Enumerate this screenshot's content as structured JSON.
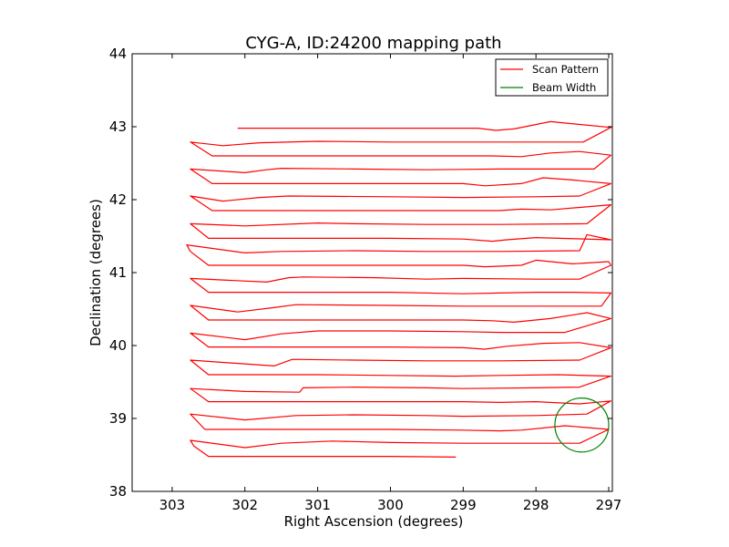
{
  "chart_data": {
    "type": "line",
    "title": "CYG-A, ID:24200 mapping path",
    "xlabel": "Right Ascension (degrees)",
    "ylabel": "Declination (degrees)",
    "xlim": [
      303.55,
      296.95
    ],
    "ylim": [
      38,
      44
    ],
    "x_ticks": [
      303,
      302,
      301,
      300,
      299,
      298,
      297
    ],
    "y_ticks": [
      38,
      39,
      40,
      41,
      42,
      43,
      44
    ],
    "x_tick_labels": [
      "303",
      "302",
      "301",
      "300",
      "299",
      "298",
      "297"
    ],
    "y_tick_labels": [
      "38",
      "39",
      "40",
      "41",
      "42",
      "43",
      "44"
    ],
    "grid": false,
    "legend_position": "top-right",
    "series": [
      {
        "name": "Scan Pattern",
        "color": "#ff0000",
        "points": [
          [
            299.1,
            38.47
          ],
          [
            300.0,
            38.48
          ],
          [
            301.0,
            38.48
          ],
          [
            302.5,
            38.48
          ],
          [
            302.7,
            38.62
          ],
          [
            302.75,
            38.7
          ],
          [
            302.0,
            38.6
          ],
          [
            301.5,
            38.66
          ],
          [
            300.8,
            38.69
          ],
          [
            300.0,
            38.67
          ],
          [
            299.0,
            38.66
          ],
          [
            298.0,
            38.66
          ],
          [
            297.4,
            38.66
          ],
          [
            297.0,
            38.85
          ],
          [
            297.6,
            38.9
          ],
          [
            298.2,
            38.84
          ],
          [
            298.5,
            38.83
          ],
          [
            299.0,
            38.84
          ],
          [
            300.0,
            38.85
          ],
          [
            302.0,
            38.85
          ],
          [
            302.55,
            38.85
          ],
          [
            302.75,
            39.06
          ],
          [
            302.0,
            38.98
          ],
          [
            301.3,
            39.04
          ],
          [
            300.5,
            39.05
          ],
          [
            299.5,
            39.04
          ],
          [
            299.0,
            39.03
          ],
          [
            298.0,
            39.04
          ],
          [
            297.3,
            39.06
          ],
          [
            296.97,
            39.24
          ],
          [
            297.4,
            39.2
          ],
          [
            298.0,
            39.23
          ],
          [
            298.5,
            39.22
          ],
          [
            299.0,
            39.23
          ],
          [
            300.0,
            39.23
          ],
          [
            301.0,
            39.23
          ],
          [
            302.5,
            39.23
          ],
          [
            302.75,
            39.41
          ],
          [
            302.0,
            39.37
          ],
          [
            301.25,
            39.36
          ],
          [
            301.2,
            39.42
          ],
          [
            300.5,
            39.43
          ],
          [
            299.5,
            39.42
          ],
          [
            299.0,
            39.41
          ],
          [
            298.0,
            39.42
          ],
          [
            297.4,
            39.43
          ],
          [
            296.97,
            39.58
          ],
          [
            297.7,
            39.6
          ],
          [
            298.5,
            39.59
          ],
          [
            299.1,
            39.58
          ],
          [
            300.0,
            39.59
          ],
          [
            301.0,
            39.6
          ],
          [
            302.5,
            39.6
          ],
          [
            302.75,
            39.8
          ],
          [
            301.6,
            39.72
          ],
          [
            301.35,
            39.81
          ],
          [
            300.5,
            39.8
          ],
          [
            299.5,
            39.79
          ],
          [
            298.5,
            39.79
          ],
          [
            297.4,
            39.8
          ],
          [
            296.97,
            39.97
          ],
          [
            297.4,
            40.04
          ],
          [
            297.9,
            40.03
          ],
          [
            298.4,
            39.99
          ],
          [
            298.7,
            39.95
          ],
          [
            299.0,
            39.97
          ],
          [
            300.0,
            39.98
          ],
          [
            301.0,
            39.98
          ],
          [
            302.5,
            39.98
          ],
          [
            302.75,
            40.17
          ],
          [
            302.0,
            40.08
          ],
          [
            301.5,
            40.16
          ],
          [
            301.0,
            40.2
          ],
          [
            300.0,
            40.2
          ],
          [
            299.0,
            40.19
          ],
          [
            298.5,
            40.18
          ],
          [
            297.6,
            40.18
          ],
          [
            296.97,
            40.37
          ],
          [
            297.3,
            40.45
          ],
          [
            297.8,
            40.37
          ],
          [
            298.3,
            40.32
          ],
          [
            298.6,
            40.34
          ],
          [
            299.0,
            40.35
          ],
          [
            300.0,
            40.35
          ],
          [
            301.0,
            40.35
          ],
          [
            302.5,
            40.35
          ],
          [
            302.75,
            40.55
          ],
          [
            302.1,
            40.46
          ],
          [
            301.6,
            40.52
          ],
          [
            301.3,
            40.56
          ],
          [
            300.0,
            40.55
          ],
          [
            299.0,
            40.54
          ],
          [
            298.0,
            40.54
          ],
          [
            297.1,
            40.54
          ],
          [
            296.97,
            40.72
          ],
          [
            297.5,
            40.73
          ],
          [
            298.0,
            40.73
          ],
          [
            298.5,
            40.72
          ],
          [
            299.0,
            40.71
          ],
          [
            300.0,
            40.73
          ],
          [
            301.0,
            40.73
          ],
          [
            302.5,
            40.73
          ],
          [
            302.75,
            40.92
          ],
          [
            301.7,
            40.87
          ],
          [
            301.4,
            40.93
          ],
          [
            301.2,
            40.94
          ],
          [
            300.2,
            40.93
          ],
          [
            299.5,
            40.91
          ],
          [
            299.0,
            40.92
          ],
          [
            298.0,
            40.91
          ],
          [
            297.4,
            40.91
          ],
          [
            296.97,
            41.1
          ],
          [
            297.0,
            41.15
          ],
          [
            297.5,
            41.12
          ],
          [
            298.0,
            41.17
          ],
          [
            298.2,
            41.1
          ],
          [
            298.7,
            41.08
          ],
          [
            299.0,
            41.1
          ],
          [
            300.0,
            41.1
          ],
          [
            301.0,
            41.1
          ],
          [
            302.5,
            41.1
          ],
          [
            302.75,
            41.29
          ],
          [
            302.8,
            41.38
          ],
          [
            302.0,
            41.27
          ],
          [
            301.5,
            41.29
          ],
          [
            300.5,
            41.3
          ],
          [
            299.5,
            41.29
          ],
          [
            298.5,
            41.29
          ],
          [
            297.4,
            41.3
          ],
          [
            297.3,
            41.52
          ],
          [
            296.97,
            41.45
          ],
          [
            298.0,
            41.48
          ],
          [
            298.4,
            41.45
          ],
          [
            298.6,
            41.43
          ],
          [
            299.0,
            41.46
          ],
          [
            300.0,
            41.47
          ],
          [
            301.0,
            41.47
          ],
          [
            302.5,
            41.47
          ],
          [
            302.75,
            41.67
          ],
          [
            302.0,
            41.64
          ],
          [
            301.0,
            41.68
          ],
          [
            300.5,
            41.67
          ],
          [
            299.5,
            41.66
          ],
          [
            298.5,
            41.66
          ],
          [
            297.3,
            41.67
          ],
          [
            296.97,
            41.93
          ],
          [
            297.8,
            41.86
          ],
          [
            298.2,
            41.87
          ],
          [
            298.5,
            41.85
          ],
          [
            299.0,
            41.85
          ],
          [
            300.0,
            41.85
          ],
          [
            301.0,
            41.85
          ],
          [
            302.45,
            41.85
          ],
          [
            302.75,
            42.05
          ],
          [
            302.3,
            41.98
          ],
          [
            301.8,
            42.03
          ],
          [
            301.4,
            42.05
          ],
          [
            300.0,
            42.04
          ],
          [
            299.0,
            42.03
          ],
          [
            298.0,
            42.04
          ],
          [
            297.4,
            42.05
          ],
          [
            296.97,
            42.22
          ],
          [
            297.5,
            42.27
          ],
          [
            297.9,
            42.3
          ],
          [
            298.2,
            42.22
          ],
          [
            298.7,
            42.19
          ],
          [
            299.0,
            42.22
          ],
          [
            300.0,
            42.22
          ],
          [
            301.0,
            42.22
          ],
          [
            302.45,
            42.22
          ],
          [
            302.75,
            42.42
          ],
          [
            302.0,
            42.37
          ],
          [
            301.7,
            42.41
          ],
          [
            301.5,
            42.43
          ],
          [
            300.5,
            42.42
          ],
          [
            299.5,
            42.41
          ],
          [
            298.5,
            42.42
          ],
          [
            297.2,
            42.42
          ],
          [
            296.97,
            42.61
          ],
          [
            297.4,
            42.66
          ],
          [
            297.8,
            42.64
          ],
          [
            298.2,
            42.59
          ],
          [
            298.6,
            42.6
          ],
          [
            299.0,
            42.6
          ],
          [
            300.0,
            42.6
          ],
          [
            301.0,
            42.6
          ],
          [
            302.45,
            42.6
          ],
          [
            302.75,
            42.79
          ],
          [
            302.3,
            42.74
          ],
          [
            301.8,
            42.78
          ],
          [
            301.0,
            42.8
          ],
          [
            300.0,
            42.79
          ],
          [
            299.0,
            42.79
          ],
          [
            298.0,
            42.79
          ],
          [
            297.35,
            42.79
          ],
          [
            296.97,
            42.99
          ],
          [
            297.8,
            43.07
          ],
          [
            298.3,
            42.97
          ],
          [
            298.55,
            42.95
          ],
          [
            298.8,
            42.98
          ],
          [
            299.5,
            42.98
          ],
          [
            301.0,
            42.98
          ],
          [
            302.1,
            42.98
          ]
        ]
      },
      {
        "name": "Beam Width",
        "color": "#008000",
        "shape": "circle",
        "center": [
          297.37,
          38.91
        ],
        "radius_ra": 0.37,
        "radius_dec": 0.37
      }
    ]
  }
}
